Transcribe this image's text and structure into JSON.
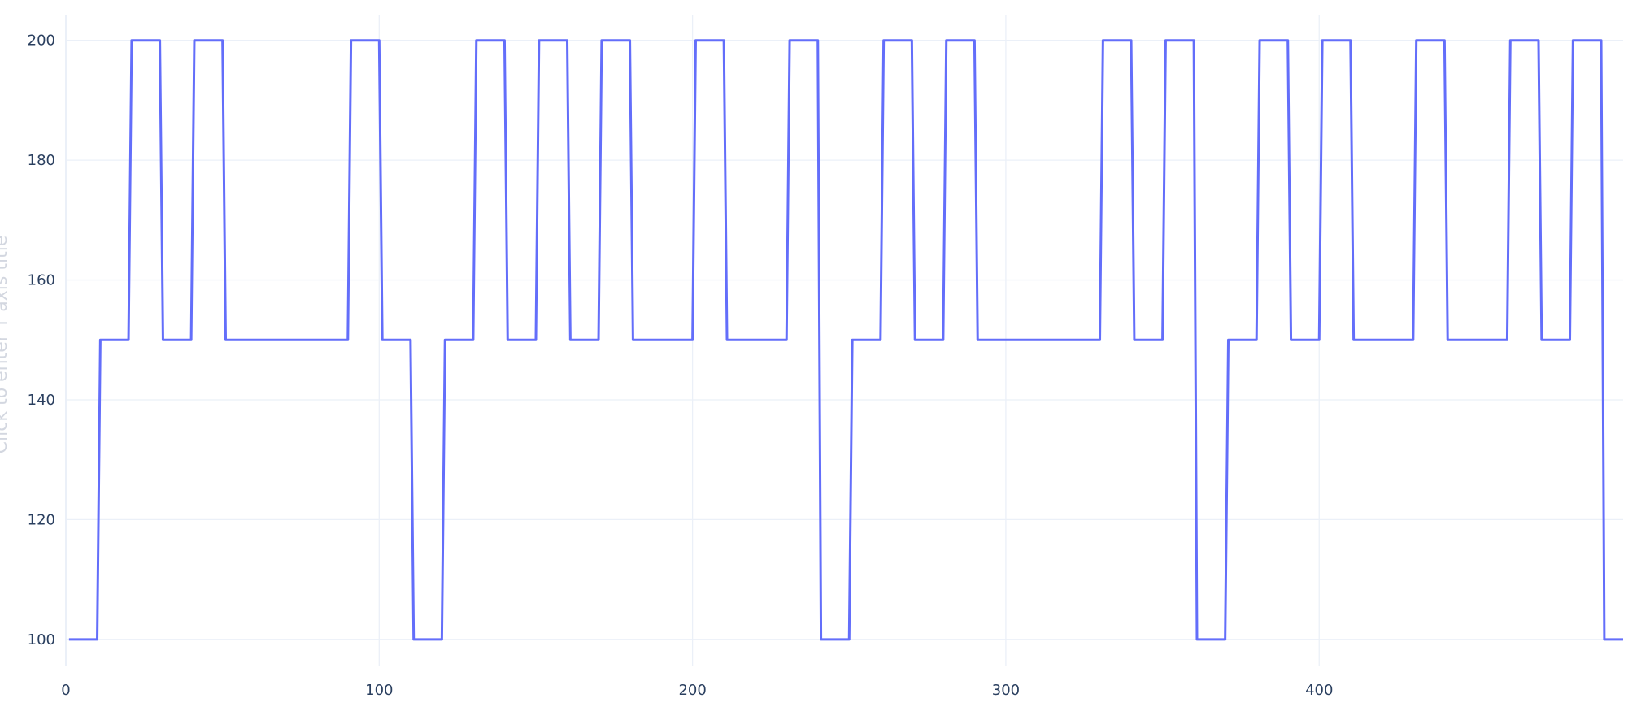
{
  "chart_data": {
    "type": "line",
    "title": "",
    "xlabel": "",
    "ylabel": "Click to enter Y axis title",
    "xlim": [
      0,
      497
    ],
    "ylim": [
      95.5,
      204.3
    ],
    "x_ticks": [
      0,
      100,
      200,
      300,
      400
    ],
    "y_ticks": [
      100,
      120,
      140,
      160,
      180,
      200
    ],
    "grid": true,
    "legend": "none",
    "colors": {
      "series": "#636efa",
      "grid": "#ebf0f8",
      "tick_text": "#2a3f5f",
      "axis_title": "#d3d7e0",
      "background": "#ffffff"
    },
    "series": [
      {
        "x": [
          1,
          10,
          11,
          20,
          21,
          30,
          31,
          40,
          41,
          50,
          51,
          90,
          91,
          100,
          101,
          110,
          111,
          120,
          121,
          130,
          131,
          140,
          141,
          150,
          151,
          160,
          161,
          170,
          171,
          180,
          181,
          200,
          201,
          210,
          211,
          230,
          231,
          240,
          241,
          250,
          251,
          260,
          261,
          270,
          271,
          280,
          281,
          290,
          291,
          330,
          331,
          340,
          341,
          350,
          351,
          360,
          361,
          370,
          371,
          380,
          381,
          390,
          391,
          400,
          401,
          410,
          411,
          430,
          431,
          440,
          441,
          460,
          461,
          470,
          471,
          480,
          481,
          490,
          491,
          497
        ],
        "y": [
          100,
          100,
          150,
          150,
          200,
          200,
          150,
          150,
          200,
          200,
          150,
          150,
          200,
          200,
          150,
          150,
          100,
          100,
          150,
          150,
          200,
          200,
          150,
          150,
          200,
          200,
          150,
          150,
          200,
          200,
          150,
          150,
          200,
          200,
          150,
          150,
          200,
          200,
          100,
          100,
          150,
          150,
          200,
          200,
          150,
          150,
          200,
          200,
          150,
          150,
          200,
          200,
          150,
          150,
          200,
          200,
          100,
          100,
          150,
          150,
          200,
          200,
          150,
          150,
          200,
          200,
          150,
          150,
          200,
          200,
          150,
          150,
          200,
          200,
          150,
          150,
          200,
          200,
          100,
          100
        ]
      }
    ]
  }
}
